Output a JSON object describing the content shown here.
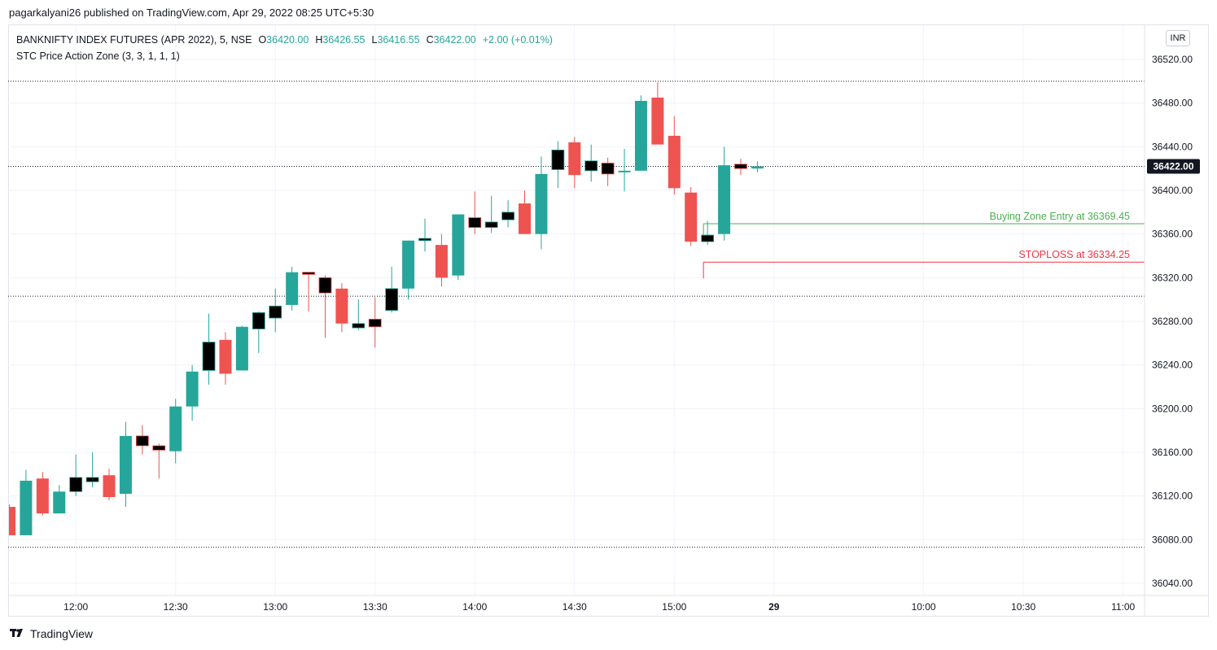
{
  "publisher": "pagarkalyani26 published on TradingView.com, Apr 29, 2022 08:25 UTC+5:30",
  "legend": {
    "symbol": "BANKNIFTY INDEX FUTURES (APR 2022), 5, NSE",
    "open_label": "O",
    "open": "36420.00",
    "high_label": "H",
    "high": "36426.55",
    "low_label": "L",
    "low": "36416.55",
    "close_label": "C",
    "close": "36422.00",
    "change": "+2.00 (+0.01%)",
    "indicator": "STC Price Action Zone (3, 3, 1, 1, 1)"
  },
  "currency_badge": "INR",
  "branding": {
    "logo_text": "TradingView",
    "logo_icon": "tradingview-logo-icon"
  },
  "colors": {
    "up": "#26a69a",
    "down": "#ef5350",
    "marker": "#000000",
    "buy_line": "#4caf50",
    "stop_line": "#f23645",
    "grid": "#f0f3fa"
  },
  "chart_data": {
    "type": "candlestick",
    "title": "BANKNIFTY INDEX FUTURES (APR 2022), 5, NSE",
    "ylim": [
      36025,
      36545
    ],
    "y_ticks": [
      "36520.00",
      "36480.00",
      "36440.00",
      "36400.00",
      "36360.00",
      "36320.00",
      "36280.00",
      "36240.00",
      "36200.00",
      "36160.00",
      "36120.00",
      "36080.00",
      "36040.00"
    ],
    "x_ticks": [
      {
        "label": "12:00",
        "bar": 4
      },
      {
        "label": "12:30",
        "bar": 10
      },
      {
        "label": "13:00",
        "bar": 16
      },
      {
        "label": "13:30",
        "bar": 22
      },
      {
        "label": "14:00",
        "bar": 28
      },
      {
        "label": "14:30",
        "bar": 34
      },
      {
        "label": "15:00",
        "bar": 40
      },
      {
        "label": "29",
        "bar": 46
      },
      {
        "label": "10:00",
        "bar": 55
      },
      {
        "label": "10:30",
        "bar": 61
      },
      {
        "label": "11:00",
        "bar": 67
      }
    ],
    "candles": [
      {
        "o": 36110,
        "h": 36112,
        "l": 36084,
        "c": 36084,
        "m": false
      },
      {
        "o": 36084,
        "h": 36144,
        "l": 36084,
        "c": 36134,
        "m": false
      },
      {
        "o": 36136,
        "h": 36142,
        "l": 36102,
        "c": 36104,
        "m": false
      },
      {
        "o": 36104,
        "h": 36130,
        "l": 36104,
        "c": 36124,
        "m": false
      },
      {
        "o": 36124,
        "h": 36158,
        "l": 36120,
        "c": 36137,
        "m": true
      },
      {
        "o": 36133,
        "h": 36160,
        "l": 36128,
        "c": 36137,
        "m": true
      },
      {
        "o": 36139,
        "h": 36145,
        "l": 36116,
        "c": 36119,
        "m": false
      },
      {
        "o": 36122,
        "h": 36188,
        "l": 36110,
        "c": 36175,
        "m": false
      },
      {
        "o": 36175,
        "h": 36185,
        "l": 36158,
        "c": 36166,
        "m": true
      },
      {
        "o": 36166,
        "h": 36168,
        "l": 36136,
        "c": 36162,
        "m": true
      },
      {
        "o": 36161,
        "h": 36209,
        "l": 36150,
        "c": 36202,
        "m": false
      },
      {
        "o": 36202,
        "h": 36240,
        "l": 36189,
        "c": 36234,
        "m": false
      },
      {
        "o": 36235,
        "h": 36287,
        "l": 36222,
        "c": 36261,
        "m": true
      },
      {
        "o": 36263,
        "h": 36270,
        "l": 36222,
        "c": 36232,
        "m": false
      },
      {
        "o": 36235,
        "h": 36276,
        "l": 36235,
        "c": 36275,
        "m": false
      },
      {
        "o": 36273,
        "h": 36289,
        "l": 36251,
        "c": 36288,
        "m": true
      },
      {
        "o": 36283,
        "h": 36310,
        "l": 36270,
        "c": 36294,
        "m": true
      },
      {
        "o": 36295,
        "h": 36330,
        "l": 36290,
        "c": 36325,
        "m": false
      },
      {
        "o": 36325,
        "h": 36325,
        "l": 36289,
        "c": 36323,
        "m": true
      },
      {
        "o": 36320,
        "h": 36322,
        "l": 36265,
        "c": 36306,
        "m": true
      },
      {
        "o": 36310,
        "h": 36315,
        "l": 36270,
        "c": 36278,
        "m": false
      },
      {
        "o": 36274,
        "h": 36300,
        "l": 36272,
        "c": 36278,
        "m": true
      },
      {
        "o": 36282,
        "h": 36302,
        "l": 36256,
        "c": 36275,
        "m": true
      },
      {
        "o": 36290,
        "h": 36330,
        "l": 36288,
        "c": 36310,
        "m": true
      },
      {
        "o": 36310,
        "h": 36354,
        "l": 36300,
        "c": 36354,
        "m": false
      },
      {
        "o": 36354,
        "h": 36374,
        "l": 36344,
        "c": 36356,
        "m": true
      },
      {
        "o": 36350,
        "h": 36360,
        "l": 36312,
        "c": 36320,
        "m": false
      },
      {
        "o": 36322,
        "h": 36378,
        "l": 36318,
        "c": 36378,
        "m": false
      },
      {
        "o": 36375,
        "h": 36399,
        "l": 36360,
        "c": 36366,
        "m": true
      },
      {
        "o": 36366,
        "h": 36395,
        "l": 36361,
        "c": 36371,
        "m": true
      },
      {
        "o": 36373,
        "h": 36391,
        "l": 36366,
        "c": 36380,
        "m": true
      },
      {
        "o": 36388,
        "h": 36400,
        "l": 36360,
        "c": 36360,
        "m": false
      },
      {
        "o": 36360,
        "h": 36431,
        "l": 36346,
        "c": 36415,
        "m": false
      },
      {
        "o": 36419,
        "h": 36445,
        "l": 36402,
        "c": 36437,
        "m": true
      },
      {
        "o": 36444,
        "h": 36449,
        "l": 36402,
        "c": 36414,
        "m": false
      },
      {
        "o": 36418,
        "h": 36442,
        "l": 36408,
        "c": 36427,
        "m": true
      },
      {
        "o": 36425,
        "h": 36430,
        "l": 36404,
        "c": 36415,
        "m": true
      },
      {
        "o": 36418,
        "h": 36438,
        "l": 36399,
        "c": 36418,
        "m": false
      },
      {
        "o": 36418,
        "h": 36487,
        "l": 36418,
        "c": 36482,
        "m": false
      },
      {
        "o": 36485,
        "h": 36499,
        "l": 36442,
        "c": 36442,
        "m": false
      },
      {
        "o": 36450,
        "h": 36468,
        "l": 36396,
        "c": 36402,
        "m": false
      },
      {
        "o": 36398,
        "h": 36403,
        "l": 36349,
        "c": 36353,
        "m": false
      },
      {
        "o": 36353,
        "h": 36372,
        "l": 36350,
        "c": 36359,
        "m": true
      },
      {
        "o": 36360,
        "h": 36440,
        "l": 36354,
        "c": 36423,
        "m": false
      },
      {
        "o": 36424,
        "h": 36429,
        "l": 36414,
        "c": 36420,
        "m": true
      },
      {
        "o": 36420,
        "h": 36426.55,
        "l": 36416.55,
        "c": 36422,
        "m": false
      }
    ],
    "dotted_levels": [
      36500,
      36422,
      36303,
      36073
    ],
    "current_price_label": "36422.00",
    "annotations": [
      {
        "name": "buy-zone",
        "label": "Buying Zone Entry at 36369.45",
        "value": 36369.45,
        "start_bar": 42
      },
      {
        "name": "stoploss",
        "label": "STOPLOSS at 36334.25",
        "value": 36334.25,
        "start_bar": 42
      }
    ]
  }
}
